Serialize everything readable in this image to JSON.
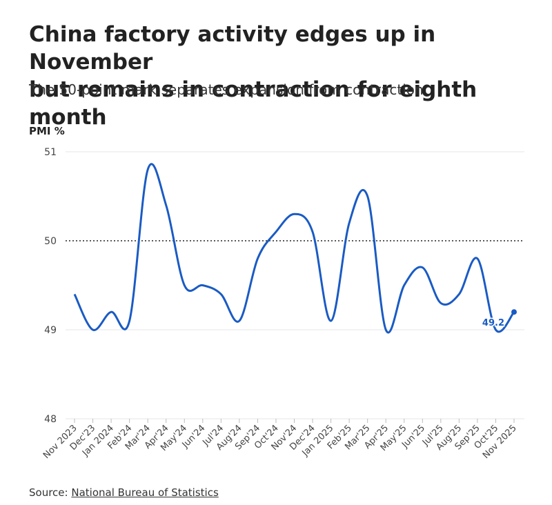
{
  "chart_data": {
    "type": "line",
    "title": [
      "China factory activity edges up in November",
      "but remains in contraction for eighth month"
    ],
    "subtitle": "The 50-point mark separates expansion from contraction",
    "y_label": "PMI %",
    "categories": [
      "Nov 2023",
      "Dec'23",
      "Jan 2024",
      "Feb'24",
      "Mar'24",
      "Apr'24",
      "May'24",
      "Jun'24",
      "Jul'24",
      "Aug'24",
      "Sep'24",
      "Oct'24",
      "Nov'24",
      "Dec'24",
      "Jan 2025",
      "Feb'25",
      "Mar'25",
      "Apr'25",
      "May'25",
      "Jun'25",
      "Jul'25",
      "Aug'25",
      "Sep'25",
      "Oct'25",
      "Nov 2025"
    ],
    "series": [
      {
        "name": "PMI",
        "color": "#1a5bc4",
        "values": [
          49.4,
          49.0,
          49.2,
          49.1,
          50.8,
          50.4,
          49.5,
          49.5,
          49.4,
          49.1,
          49.8,
          50.1,
          50.3,
          50.1,
          49.1,
          50.2,
          50.5,
          49.0,
          49.5,
          49.7,
          49.3,
          49.4,
          49.8,
          49.0,
          49.2
        ]
      }
    ],
    "ylim": [
      48,
      51
    ],
    "yticks": [
      48,
      49,
      50,
      51
    ],
    "grid": true,
    "reference_line": 50,
    "source_label": "Source:",
    "source": "National Bureau of Statistics"
  }
}
